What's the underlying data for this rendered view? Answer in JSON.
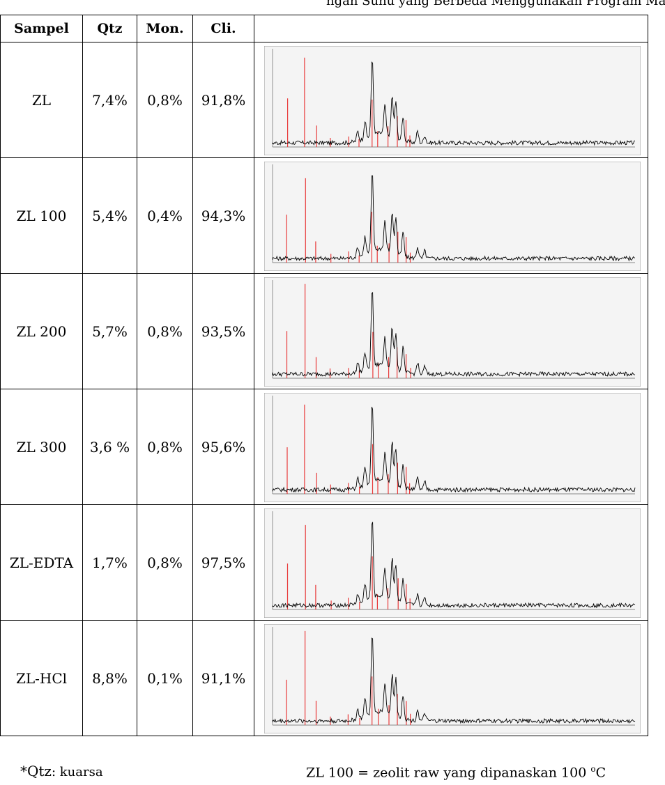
{
  "caption_fragment": "ngan Suhu yang Berbeda Menggunakan Program Match!",
  "table": {
    "headers": [
      "Sampel",
      "Qtz",
      "Mon.",
      "Cli.",
      ""
    ],
    "rows": [
      {
        "sample": "ZL",
        "qtz": "7,4%",
        "mon": "0,8%",
        "cli": "91,8%",
        "pattern": "xrd-pattern-zl"
      },
      {
        "sample": "ZL 100",
        "qtz": "5,4%",
        "mon": "0,4%",
        "cli": "94,3%",
        "pattern": "xrd-pattern-zl100"
      },
      {
        "sample": "ZL 200",
        "qtz": "5,7%",
        "mon": "0,8%",
        "cli": "93,5%",
        "pattern": "xrd-pattern-zl200"
      },
      {
        "sample": "ZL 300",
        "qtz": "3,6 %",
        "mon": "0,8%",
        "cli": "95,6%",
        "pattern": "xrd-pattern-zl300"
      },
      {
        "sample": "ZL-EDTA",
        "qtz": "1,7%",
        "mon": "0,8%",
        "cli": "97,5%",
        "pattern": "xrd-pattern-zledta"
      },
      {
        "sample": "ZL-HCl",
        "qtz": "8,8%",
        "mon": "0,1%",
        "cli": "91,1%",
        "pattern": "xrd-pattern-zlhcl"
      }
    ]
  },
  "footnote_left": {
    "star": "*Qtz",
    "text": ": kuarsa"
  },
  "footnote_right": {
    "text": "ZL 100 = zeolit raw yang dipanaskan 100 ",
    "sup": "o",
    "unit": "C"
  },
  "colors": {
    "measured_pattern": "#000000",
    "reference_pattern": "#e83a3a",
    "plot_background": "#f4f4f4"
  }
}
